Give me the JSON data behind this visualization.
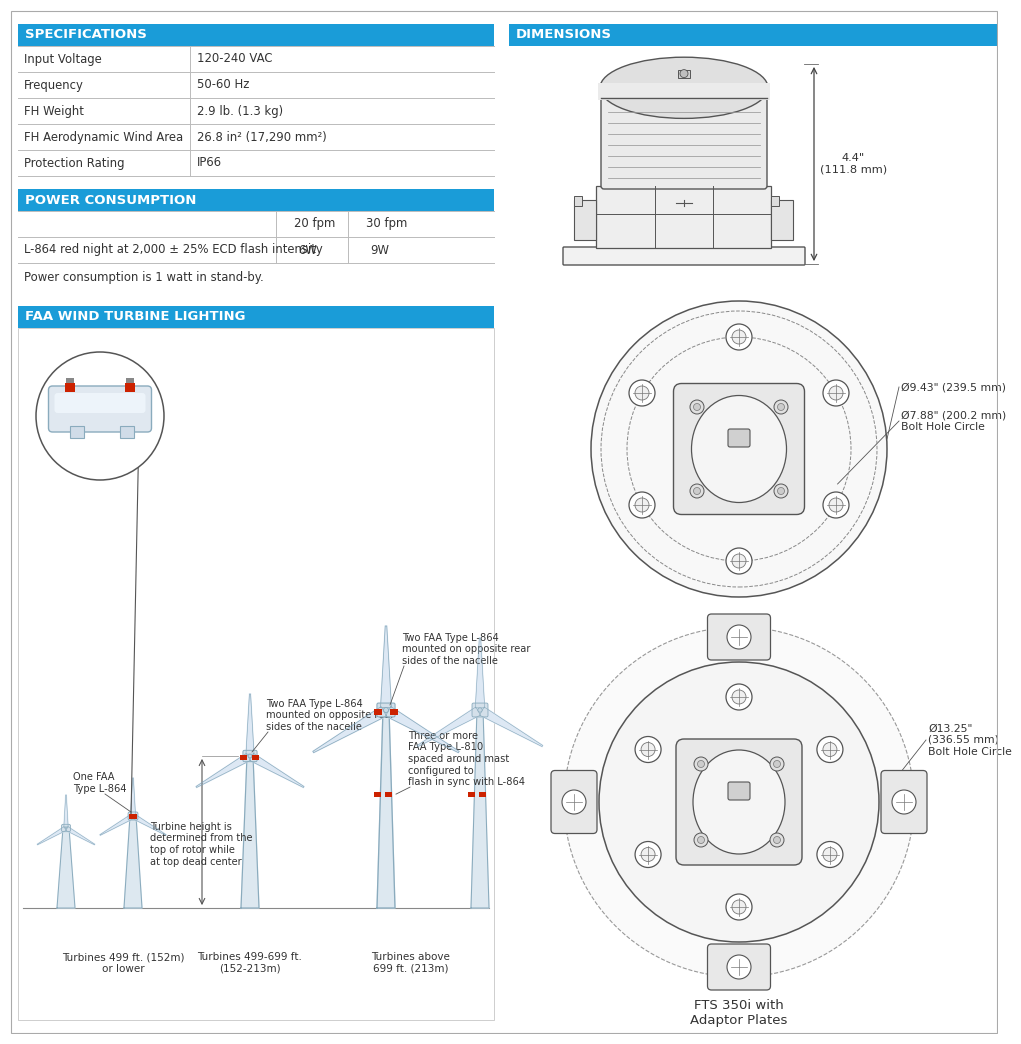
{
  "bg_color": "#ffffff",
  "header_color": "#1a9cd8",
  "header_text_color": "#ffffff",
  "line_color": "#bbbbbb",
  "text_color": "#333333",
  "draw_color": "#555555",
  "spec_title": "SPECIFICATIONS",
  "spec_rows": [
    [
      "Input Voltage",
      "120-240 VAC"
    ],
    [
      "Frequency",
      "50-60 Hz"
    ],
    [
      "FH Weight",
      "2.9 lb. (1.3 kg)"
    ],
    [
      "FH Aerodynamic Wind Area",
      "26.8 in² (17,290 mm²)"
    ],
    [
      "Protection Rating",
      "IP66"
    ]
  ],
  "power_title": "POWER CONSUMPTION",
  "power_note": "Power consumption is 1 watt in stand-by.",
  "faa_title": "FAA WIND TURBINE LIGHTING",
  "dim_title": "DIMENSIONS",
  "dim_h": "4.4\"\n(111.8 mm)",
  "dim_outer": "Ø9.43\" (239.5 mm)",
  "dim_bolthole": "Ø7.88\" (200.2 mm)\nBolt Hole Circle",
  "dim_adaptor": "Ø13.25\"\n(336.55 mm)\nBolt Hole Circle",
  "dim_label": "FTS 350i with\nAdaptor Plates",
  "turbine_labels": [
    "Turbines 499 ft. (152m)\nor lower",
    "Turbines 499-699 ft.\n(152-213m)",
    "Turbines above\n699 ft. (213m)"
  ],
  "ann_one_faa": "One FAA\nType L-864",
  "ann_two_faa_med": "Two FAA Type L-864\nmounted on opposite rear\nsides of the nacelle",
  "ann_turbine_height": "Turbine height is\ndetermined from the\ntop of rotor while\nat top dead center",
  "ann_two_faa_large": "Two FAA Type L-864\nmounted on opposite rear\nsides of the nacelle",
  "ann_three_l810": "Three or more\nFAA Type L-810\nspaced around mast\nconfigured to\nflash in sync with L-864"
}
